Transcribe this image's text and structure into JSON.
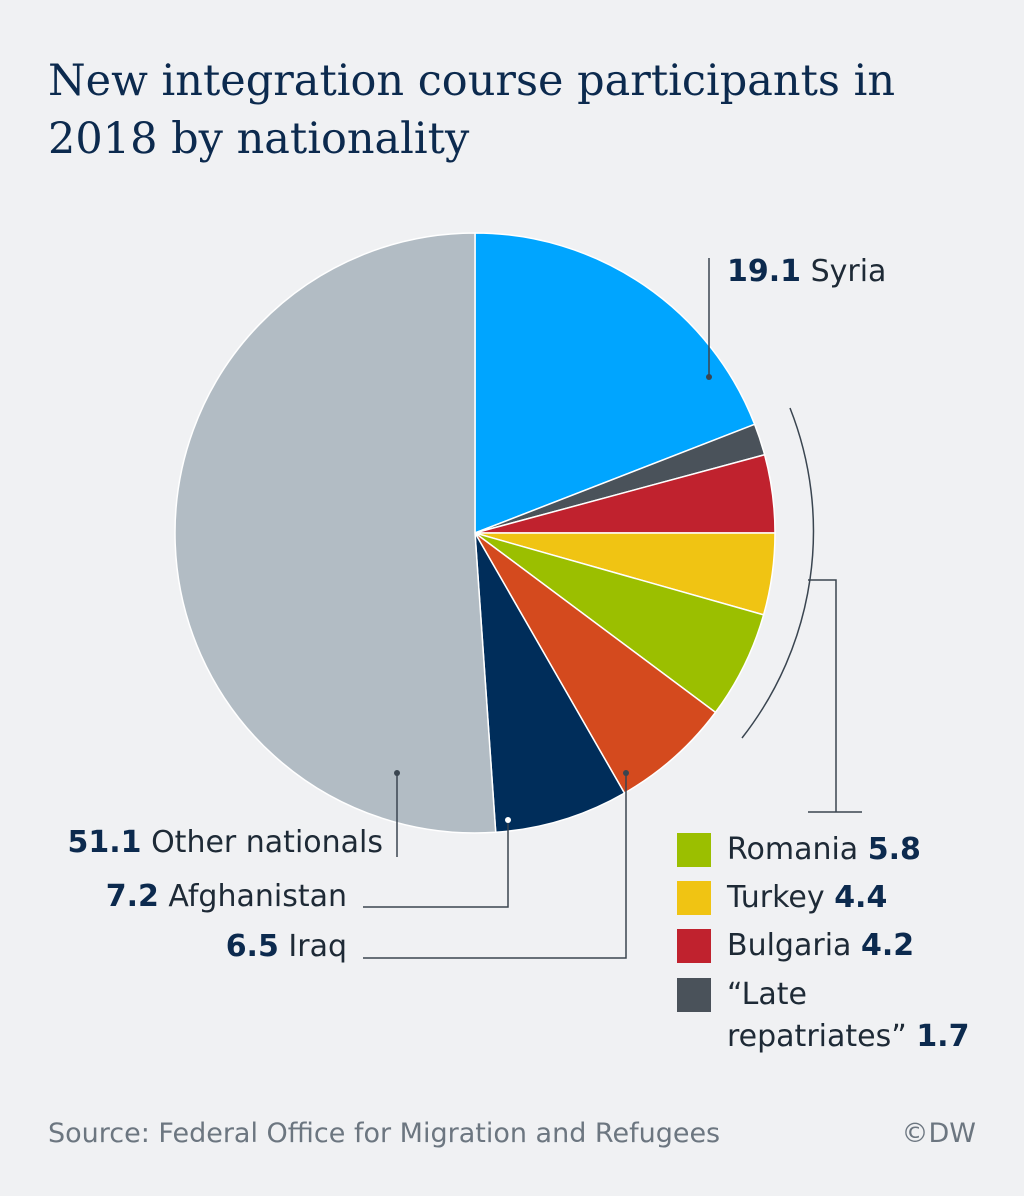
{
  "chart_data": {
    "type": "pie",
    "title": "New integration course participants in 2018 by nationality",
    "categories": [
      "Syria",
      "“Late repatriates”",
      "Bulgaria",
      "Turkey",
      "Romania",
      "Iraq",
      "Afghanistan",
      "Other nationals"
    ],
    "values": [
      19.1,
      1.7,
      4.2,
      4.4,
      5.8,
      6.5,
      7.2,
      51.1
    ],
    "colors": [
      "#00a5ff",
      "#4a525a",
      "#c0222e",
      "#f0c413",
      "#9bbf00",
      "#d44a1e",
      "#002d5a",
      "#b2bcc4"
    ],
    "source": "Source: Federal Office for Migration and Refugees",
    "credit": "©DW"
  }
}
